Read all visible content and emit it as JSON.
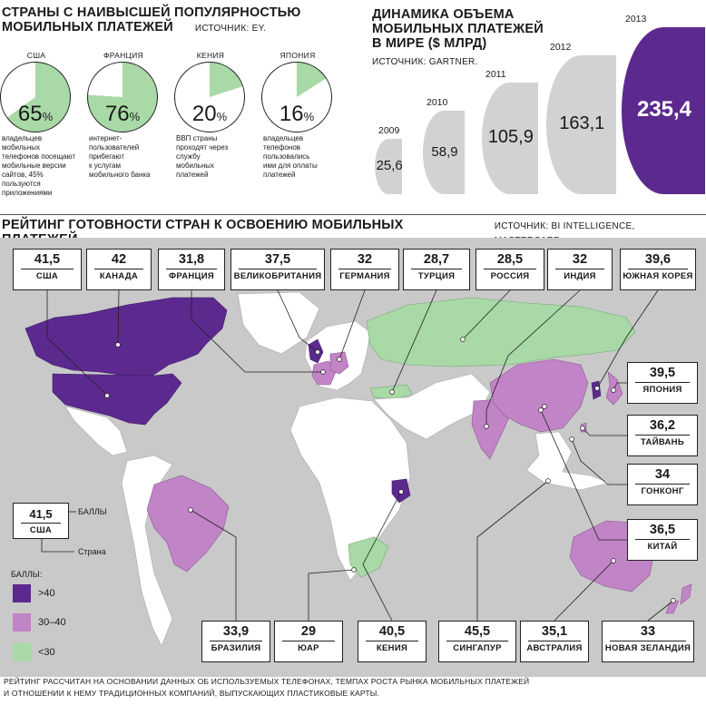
{
  "section_popularity": {
    "title_line1": "СТРАНЫ С НАИВЫСШЕЙ ПОПУЛЯРНОСТЬЮ",
    "title_line2": "МОБИЛЬНЫХ ПЛАТЕЖЕЙ",
    "source": "ИСТОЧНИК: EY."
  },
  "section_dynamics": {
    "title_line1": "ДИНАМИКА ОБЪЕМА",
    "title_line2": "МОБИЛЬНЫХ ПЛАТЕЖЕЙ",
    "title_line3": "В МИРЕ ($ МЛРД)",
    "source": "ИСТОЧНИК:  GARTNER."
  },
  "section_rating": {
    "title": "РЕЙТИНГ ГОТОВНОСТИ СТРАН К ОСВОЕНИЮ МОБИЛЬНЫХ ПЛАТЕЖЕЙ",
    "source": "ИСТОЧНИК: BI INTELLIGENCE, MASTERCARD."
  },
  "legend": {
    "example_score": "41,5",
    "example_country": "США",
    "score_label": "БАЛЛЫ",
    "country_label": "Страна",
    "scale_title": "БАЛЛЫ:",
    "items": [
      {
        "label": ">40",
        "color": "#5c2a8e"
      },
      {
        "label": "30–40",
        "color": "#c184c6"
      },
      {
        "label": "<30",
        "color": "#a8d9a6"
      }
    ]
  },
  "footnote": {
    "line1": "РЕЙТИНГ РАССЧИТАН НА ОСНОВАНИИ ДАННЫХ ОБ ИСПОЛЬЗУЕМЫХ  ТЕЛЕФОНАХ, ТЕМПАХ РОСТА РЫНКА МОБИЛЬНЫХ ПЛАТЕЖЕЙ",
    "line2": "И ОТНОШЕНИИ К НЕМУ ТРАДИЦИОННЫХ КОМПАНИЙ, ВЫПУСКАЮЩИХ ПЛАСТИКОВЫЕ КАРТЫ."
  },
  "colors": {
    "high": "#5c2a8e",
    "mid": "#c184c6",
    "low": "#a8d9a6",
    "land": "#ffffff",
    "sea": "#c9c9c9",
    "bubble": "#d2d2d4",
    "pie_green": "#a8d9a6"
  },
  "chart_data": [
    {
      "type": "pie",
      "title": "СТРАНЫ С НАИВЫСШЕЙ ПОПУЛЯРНОСТЬЮ МОБИЛЬНЫХ ПЛАТЕЖЕЙ",
      "items": [
        {
          "country": "США",
          "pct": 65,
          "pct_label": "65",
          "desc": [
            "владельцев мобильных",
            "телефонов посещают",
            "мобильные версии",
            "сайтов, 45% пользуются",
            "приложениями"
          ]
        },
        {
          "country": "ФРАНЦИЯ",
          "pct": 76,
          "pct_label": "76",
          "desc": [
            "интернет-",
            "пользователей",
            "прибегают",
            "к услугам",
            "мобильного банка"
          ]
        },
        {
          "country": "КЕНИЯ",
          "pct": 20,
          "pct_label": "20",
          "desc": [
            "ВВП страны",
            "проходят через",
            "службу",
            "мобильных",
            "платежей"
          ]
        },
        {
          "country": "ЯПОНИЯ",
          "pct": 16,
          "pct_label": "16",
          "desc": [
            "владельцев",
            "телефонов",
            "пользовались",
            "ими для оплаты",
            "платежей"
          ]
        }
      ],
      "unit": "%"
    },
    {
      "type": "bar",
      "title": "ДИНАМИКА ОБЪЕМА МОБИЛЬНЫХ ПЛАТЕЖЕЙ В МИРЕ ($ МЛРД)",
      "categories": [
        "2009",
        "2010",
        "2011",
        "2012",
        "2013"
      ],
      "values": [
        25.6,
        58.9,
        105.9,
        163.1,
        235.4
      ],
      "value_labels": [
        "25,6",
        "58,9",
        "105,9",
        "163,1",
        "235,4"
      ]
    },
    {
      "type": "table",
      "title": "РЕЙТИНГ ГОТОВНОСТИ СТРАН К ОСВОЕНИЮ МОБИЛЬНЫХ ПЛАТЕЖЕЙ",
      "top_row": [
        {
          "country": "США",
          "score": "41,5"
        },
        {
          "country": "КАНАДА",
          "score": "42"
        },
        {
          "country": "ФРАНЦИЯ",
          "score": "31,8"
        },
        {
          "country": "ВЕЛИКОБРИТАНИЯ",
          "score": "37,5"
        },
        {
          "country": "ГЕРМАНИЯ",
          "score": "32"
        },
        {
          "country": "ТУРЦИЯ",
          "score": "28,7"
        },
        {
          "country": "РОССИЯ",
          "score": "28,5"
        },
        {
          "country": "ИНДИЯ",
          "score": "32"
        },
        {
          "country": "ЮЖНАЯ КОРЕЯ",
          "score": "39,6"
        }
      ],
      "right_column": [
        {
          "country": "ЯПОНИЯ",
          "score": "39,5"
        },
        {
          "country": "ТАЙВАНЬ",
          "score": "36,2"
        },
        {
          "country": "ГОНКОНГ",
          "score": "34"
        },
        {
          "country": "КИТАЙ",
          "score": "36,5"
        }
      ],
      "bottom_row": [
        {
          "country": "БРАЗИЛИЯ",
          "score": "33,9"
        },
        {
          "country": "ЮАР",
          "score": "29"
        },
        {
          "country": "КЕНИЯ",
          "score": "40,5"
        },
        {
          "country": "СИНГАПУР",
          "score": "45,5"
        },
        {
          "country": "АВСТРАЛИЯ",
          "score": "35,1"
        },
        {
          "country": "НОВАЯ ЗЕЛАНДИЯ",
          "score": "33"
        }
      ]
    }
  ]
}
